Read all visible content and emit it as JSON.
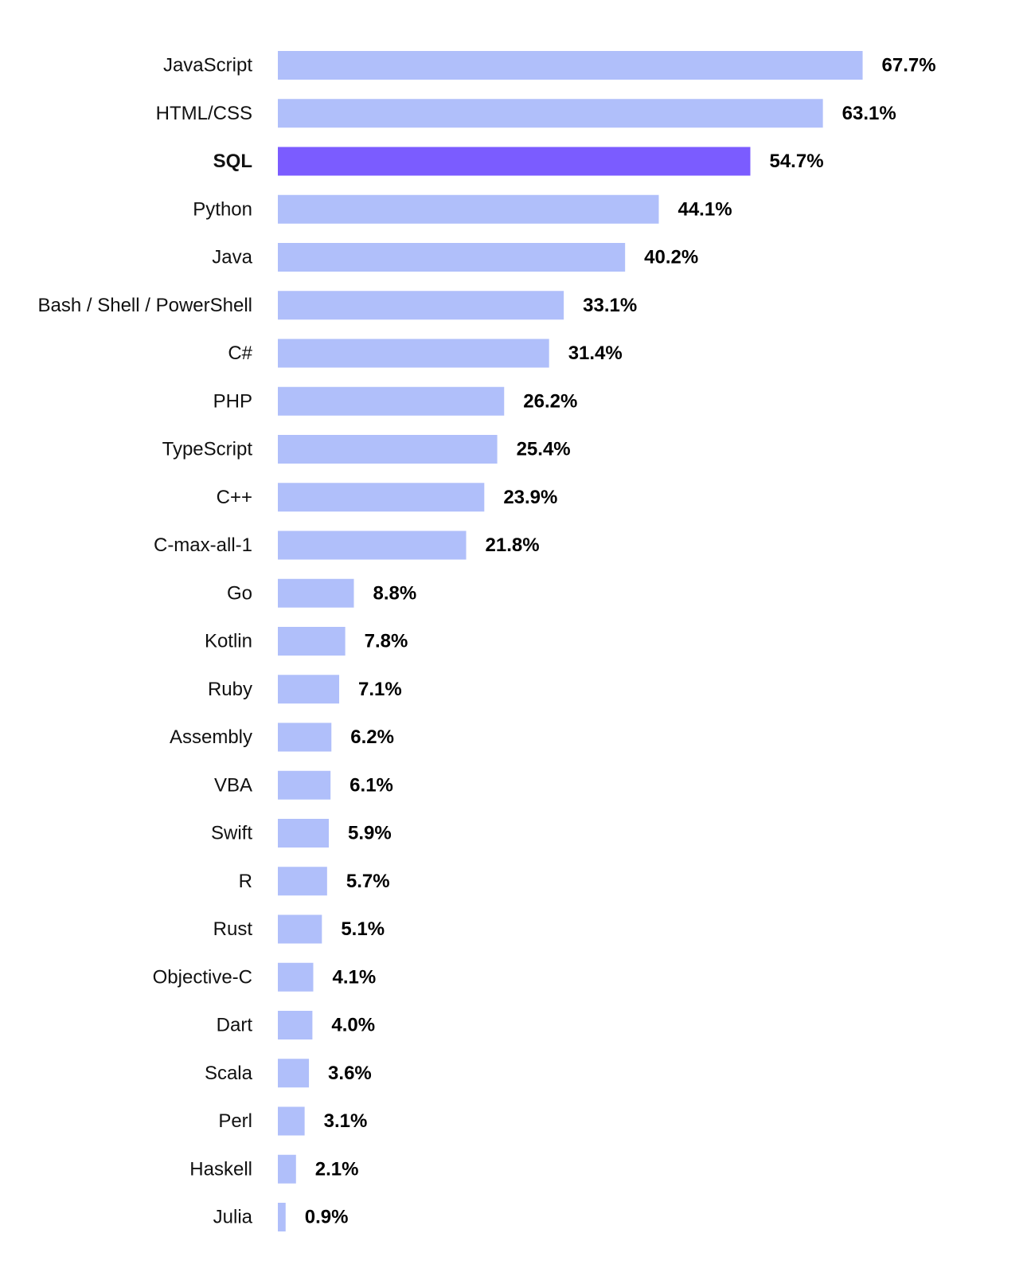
{
  "chart_data": {
    "type": "bar",
    "orientation": "horizontal",
    "categories": [
      "JavaScript",
      "HTML/CSS",
      "SQL",
      "Python",
      "Java",
      "Bash / Shell / PowerShell",
      "C#",
      "PHP",
      "TypeScript",
      "C++",
      "C-max-all-1",
      "Go",
      "Kotlin",
      "Ruby",
      "Assembly",
      "VBA",
      "Swift",
      "R",
      "Rust",
      "Objective-C",
      "Dart",
      "Scala",
      "Perl",
      "Haskell",
      "Julia"
    ],
    "values": [
      67.7,
      63.1,
      54.7,
      44.1,
      40.2,
      33.1,
      31.4,
      26.2,
      25.4,
      23.9,
      21.8,
      8.8,
      7.8,
      7.1,
      6.2,
      6.1,
      5.9,
      5.7,
      5.1,
      4.1,
      4.0,
      3.6,
      3.1,
      2.1,
      0.9
    ],
    "value_labels": [
      "67.7%",
      "63.1%",
      "54.7%",
      "44.1%",
      "40.2%",
      "33.1%",
      "31.4%",
      "26.2%",
      "25.4%",
      "23.9%",
      "21.8%",
      "8.8%",
      "7.8%",
      "7.1%",
      "6.2%",
      "6.1%",
      "5.9%",
      "5.7%",
      "5.1%",
      "4.1%",
      "4.0%",
      "3.6%",
      "3.1%",
      "2.1%",
      "0.9%"
    ],
    "highlight": "SQL",
    "unit": "%",
    "xlim": [
      0,
      100
    ],
    "grid": false,
    "legend": "none",
    "colors": {
      "bar": "#b0bffa",
      "highlight_bar": "#7b5cff",
      "label_text": "#111111",
      "value_text": "#000000"
    }
  }
}
